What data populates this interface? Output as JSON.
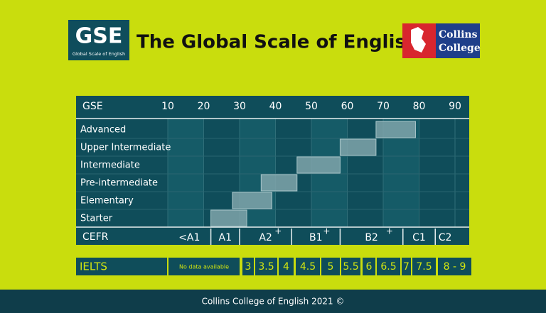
{
  "header": {
    "logo_text": "GSE",
    "logo_subtitle": "Global Scale of English",
    "title": "The Global Scale of English",
    "partner_logo": [
      "Collins",
      "College"
    ]
  },
  "scale": {
    "axis_label": "GSE",
    "xlim": [
      10,
      90
    ],
    "xticks": [
      10,
      20,
      30,
      40,
      50,
      60,
      70,
      80,
      90
    ]
  },
  "levels": [
    {
      "label": "Advanced",
      "start": 68,
      "end": 79
    },
    {
      "label": "Upper Intermediate",
      "start": 58,
      "end": 68
    },
    {
      "label": "Intermediate",
      "start": 46,
      "end": 58
    },
    {
      "label": "Pre-intermediate",
      "start": 36,
      "end": 46
    },
    {
      "label": "Elementary",
      "start": 28,
      "end": 39
    },
    {
      "label": "Starter",
      "start": 22,
      "end": 32
    }
  ],
  "cefr": {
    "label": "CEFR",
    "bands": [
      {
        "label": "<A1",
        "start": 10,
        "end": 22
      },
      {
        "label": "A1",
        "start": 22,
        "end": 30
      },
      {
        "label": "A2",
        "plus": "+",
        "start": 30,
        "end": 44.5
      },
      {
        "label": "B1",
        "plus": "+",
        "start": 44.5,
        "end": 58
      },
      {
        "label": "B2",
        "plus": "+",
        "start": 58,
        "end": 75.5
      },
      {
        "label": "C1",
        "start": 75.5,
        "end": 84.5
      },
      {
        "label": "C2",
        "start": 84.5,
        "end": 90
      }
    ]
  },
  "ielts": {
    "label": "IELTS",
    "no_data": "No data available",
    "scores": [
      3,
      3.5,
      4,
      4.5,
      5,
      5.5,
      6,
      6.5,
      7,
      7.5,
      "8 - 9"
    ]
  },
  "footer": "Collins College of English 2021 ©"
}
